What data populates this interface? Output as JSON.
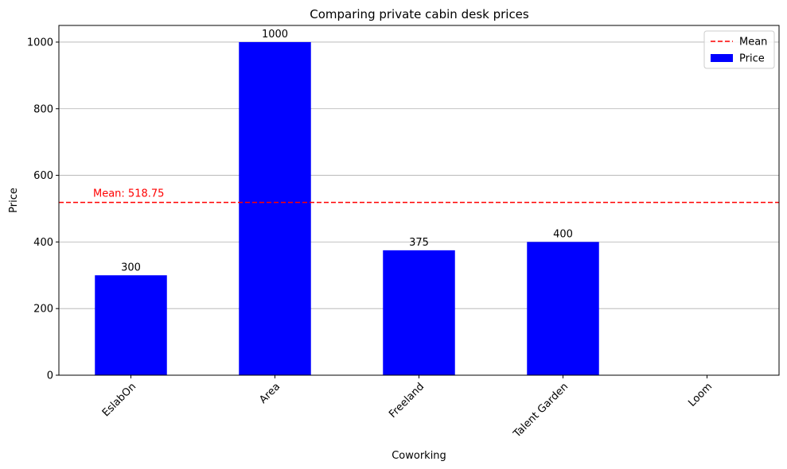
{
  "chart_data": {
    "type": "bar",
    "title": "Comparing private cabin desk prices",
    "xlabel": "Coworking",
    "ylabel": "Price",
    "categories": [
      "EslabOn",
      "Area",
      "Freeland",
      "Talent Garden",
      "Loom"
    ],
    "values": [
      300,
      1000,
      375,
      400,
      0
    ],
    "data_labels": [
      "300",
      "1000",
      "375",
      "400",
      ""
    ],
    "ylim": [
      0,
      1050
    ],
    "yticks": [
      0,
      200,
      400,
      600,
      800,
      1000
    ],
    "grid": "horizontal",
    "bar_color": "#0000ff",
    "mean": {
      "value": 518.75,
      "label": "Mean: 518.75",
      "color": "#ff0000"
    },
    "legend": {
      "position": "top-right",
      "entries": [
        {
          "label": "Mean",
          "style": "dashed-line",
          "color": "#ff0000"
        },
        {
          "label": "Price",
          "style": "bar",
          "color": "#0000ff"
        }
      ]
    },
    "tick_rotation_deg": 45
  }
}
